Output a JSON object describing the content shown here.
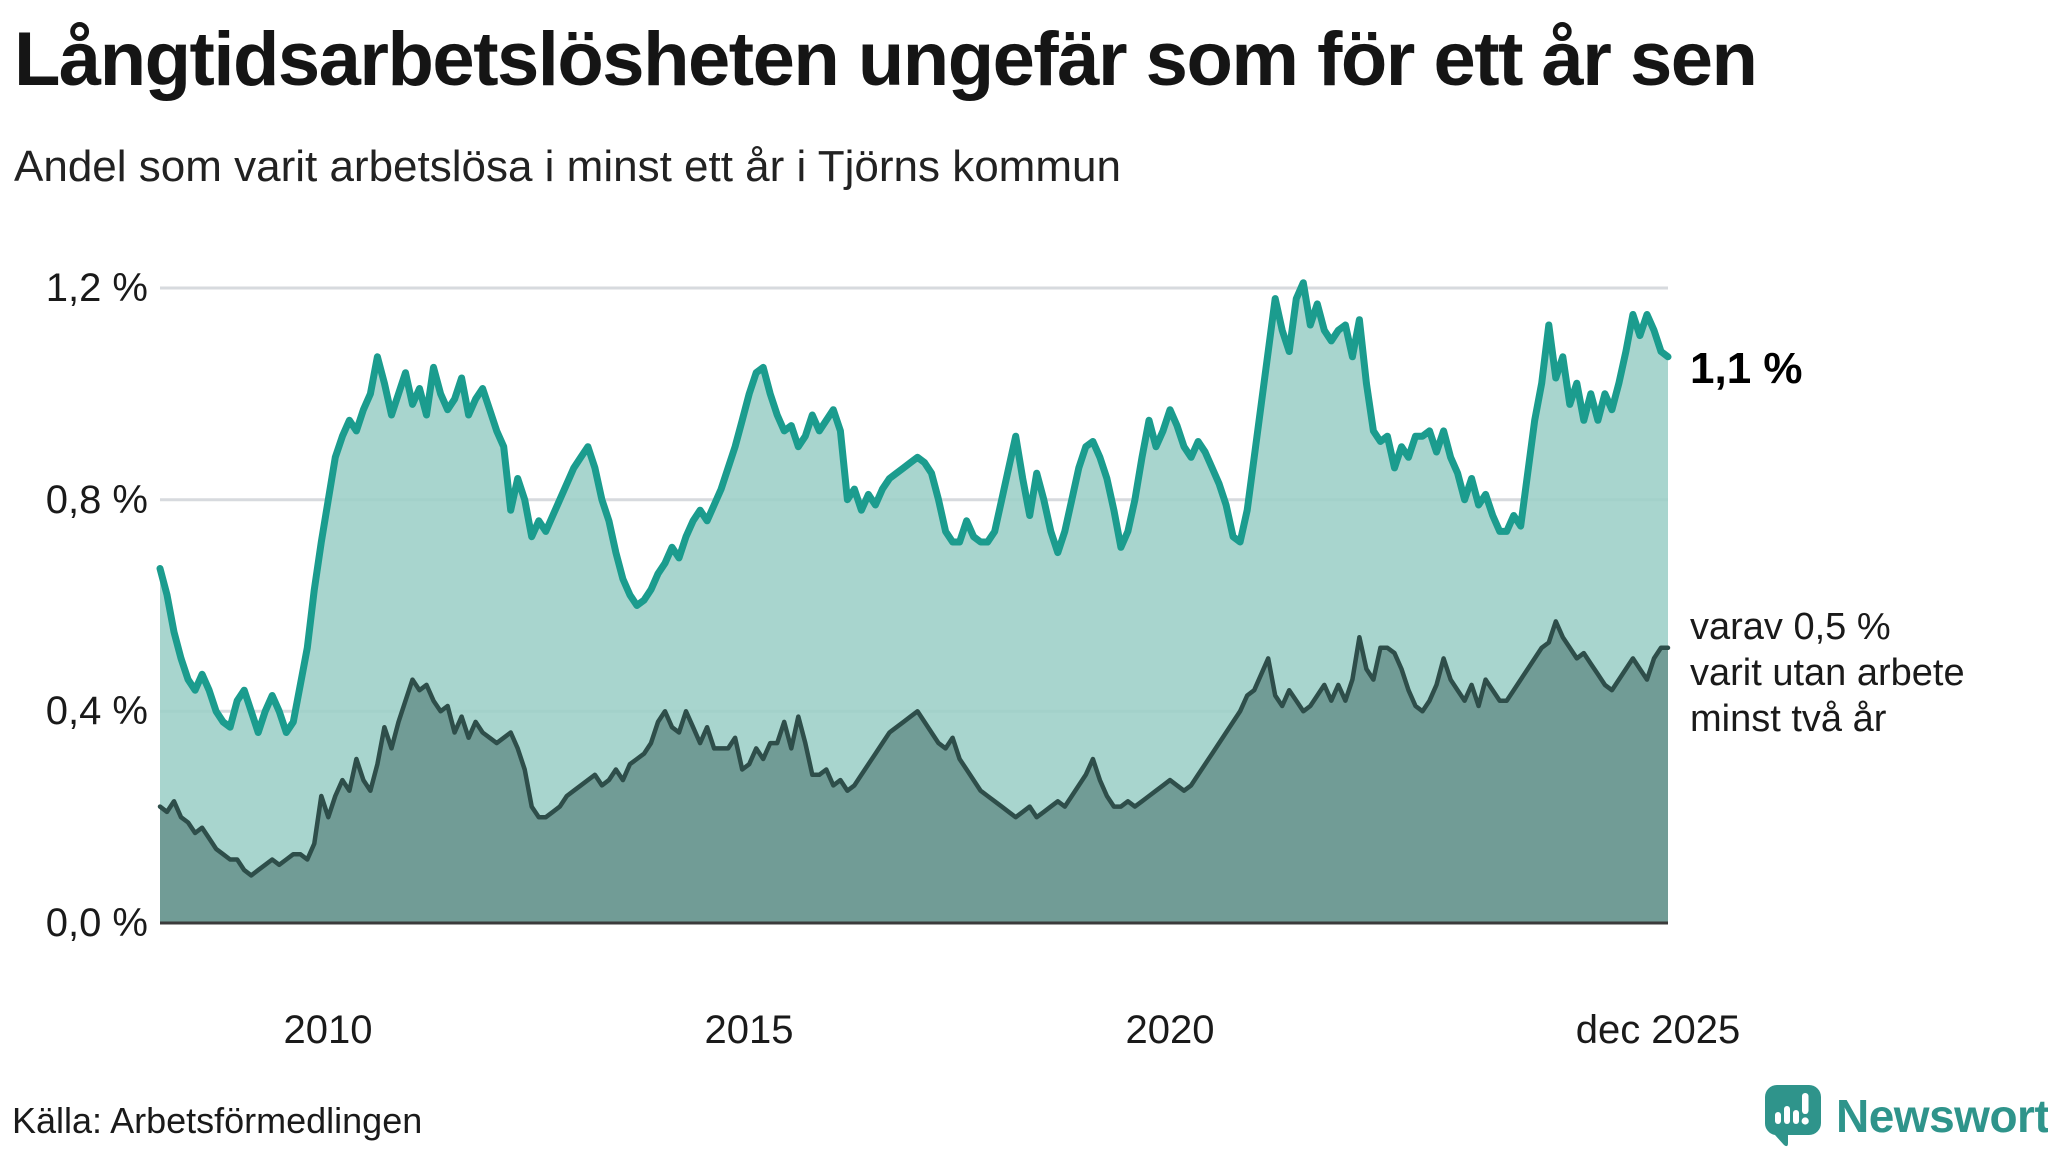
{
  "header": {
    "title": "Långtidsarbetslösheten ungefär som för ett år sen",
    "subtitle": "Andel som varit arbetslösa i minst ett år i Tjörns kommun"
  },
  "y_axis": {
    "ticks": [
      {
        "value": 1.2,
        "label": "1,2 %"
      },
      {
        "value": 0.8,
        "label": "0,8 %"
      },
      {
        "value": 0.4,
        "label": "0,4 %"
      },
      {
        "value": 0.0,
        "label": "0,0 %"
      }
    ]
  },
  "x_axis": {
    "ticks": [
      {
        "x": 2010.0,
        "label": "2010"
      },
      {
        "x": 2015.0,
        "label": "2015"
      },
      {
        "x": 2020.0,
        "label": "2020"
      },
      {
        "x": 2025.92,
        "label": "dec 2025"
      }
    ]
  },
  "annotations": {
    "latest_total": "1,1 %",
    "two_years_line1": "varav 0,5 %",
    "two_years_line2": "varit utan arbete",
    "two_years_line3": "minst två år"
  },
  "footer": {
    "source": "Källa: Arbetsförmedlingen",
    "brand": "Newsworthy"
  },
  "colors": {
    "line_total": "#1b9c8e",
    "fill_total": "#9ccfc7",
    "line_two_years": "#2e4e4a",
    "fill_two_years": "#6f9a94",
    "gridline": "#d7dade",
    "zero_axis": "#3b3b3b",
    "brand_teal": "#2f948b"
  },
  "chart_data": {
    "type": "area",
    "title": "Långtidsarbetslösheten ungefär som för ett år sen",
    "subtitle": "Andel som varit arbetslösa i minst ett år i Tjörns kommun",
    "unit": "%",
    "frequency": "monthly",
    "x_range": [
      2008.0,
      2025.92
    ],
    "ylim": [
      0,
      1.25
    ],
    "grid": "horizontal",
    "legend_position": "right-annotations",
    "series": [
      {
        "name": "Andel som varit arbetslösa i minst ett år",
        "latest_label": "1,1 %",
        "values": [
          0.67,
          0.62,
          0.55,
          0.5,
          0.46,
          0.44,
          0.47,
          0.44,
          0.4,
          0.38,
          0.37,
          0.42,
          0.44,
          0.4,
          0.36,
          0.4,
          0.43,
          0.4,
          0.36,
          0.38,
          0.45,
          0.52,
          0.63,
          0.72,
          0.8,
          0.88,
          0.92,
          0.95,
          0.93,
          0.97,
          1.0,
          1.07,
          1.02,
          0.96,
          1.0,
          1.04,
          0.98,
          1.01,
          0.96,
          1.05,
          1.0,
          0.97,
          0.99,
          1.03,
          0.96,
          0.99,
          1.01,
          0.97,
          0.93,
          0.9,
          0.78,
          0.84,
          0.8,
          0.73,
          0.76,
          0.74,
          0.77,
          0.8,
          0.83,
          0.86,
          0.88,
          0.9,
          0.86,
          0.8,
          0.76,
          0.7,
          0.65,
          0.62,
          0.6,
          0.61,
          0.63,
          0.66,
          0.68,
          0.71,
          0.69,
          0.73,
          0.76,
          0.78,
          0.76,
          0.79,
          0.82,
          0.86,
          0.9,
          0.95,
          1.0,
          1.04,
          1.05,
          1.0,
          0.96,
          0.93,
          0.94,
          0.9,
          0.92,
          0.96,
          0.93,
          0.95,
          0.97,
          0.93,
          0.8,
          0.82,
          0.78,
          0.81,
          0.79,
          0.82,
          0.84,
          0.85,
          0.86,
          0.87,
          0.88,
          0.87,
          0.85,
          0.8,
          0.74,
          0.72,
          0.72,
          0.76,
          0.73,
          0.72,
          0.72,
          0.74,
          0.8,
          0.86,
          0.92,
          0.84,
          0.77,
          0.85,
          0.8,
          0.74,
          0.7,
          0.74,
          0.8,
          0.86,
          0.9,
          0.91,
          0.88,
          0.84,
          0.78,
          0.71,
          0.74,
          0.8,
          0.88,
          0.95,
          0.9,
          0.93,
          0.97,
          0.94,
          0.9,
          0.88,
          0.91,
          0.89,
          0.86,
          0.83,
          0.79,
          0.73,
          0.72,
          0.78,
          0.88,
          0.98,
          1.08,
          1.18,
          1.12,
          1.08,
          1.18,
          1.21,
          1.13,
          1.17,
          1.12,
          1.1,
          1.12,
          1.13,
          1.07,
          1.14,
          1.02,
          0.93,
          0.91,
          0.92,
          0.86,
          0.9,
          0.88,
          0.92,
          0.92,
          0.93,
          0.89,
          0.93,
          0.88,
          0.85,
          0.8,
          0.84,
          0.79,
          0.81,
          0.77,
          0.74,
          0.74,
          0.77,
          0.75,
          0.85,
          0.95,
          1.02,
          1.13,
          1.03,
          1.07,
          0.98,
          1.02,
          0.95,
          1.0,
          0.95,
          1.0,
          0.97,
          1.02,
          1.08,
          1.15,
          1.11,
          1.15,
          1.12,
          1.08,
          1.07
        ]
      },
      {
        "name": "varav varit utan arbete minst två år",
        "latest_label": "0,5 %",
        "values": [
          0.22,
          0.21,
          0.23,
          0.2,
          0.19,
          0.17,
          0.18,
          0.16,
          0.14,
          0.13,
          0.12,
          0.12,
          0.1,
          0.09,
          0.1,
          0.11,
          0.12,
          0.11,
          0.12,
          0.13,
          0.13,
          0.12,
          0.15,
          0.24,
          0.2,
          0.24,
          0.27,
          0.25,
          0.31,
          0.27,
          0.25,
          0.3,
          0.37,
          0.33,
          0.38,
          0.42,
          0.46,
          0.44,
          0.45,
          0.42,
          0.4,
          0.41,
          0.36,
          0.39,
          0.35,
          0.38,
          0.36,
          0.35,
          0.34,
          0.35,
          0.36,
          0.33,
          0.29,
          0.22,
          0.2,
          0.2,
          0.21,
          0.22,
          0.24,
          0.25,
          0.26,
          0.27,
          0.28,
          0.26,
          0.27,
          0.29,
          0.27,
          0.3,
          0.31,
          0.32,
          0.34,
          0.38,
          0.4,
          0.37,
          0.36,
          0.4,
          0.37,
          0.34,
          0.37,
          0.33,
          0.33,
          0.33,
          0.35,
          0.29,
          0.3,
          0.33,
          0.31,
          0.34,
          0.34,
          0.38,
          0.33,
          0.39,
          0.34,
          0.28,
          0.28,
          0.29,
          0.26,
          0.27,
          0.25,
          0.26,
          0.28,
          0.3,
          0.32,
          0.34,
          0.36,
          0.37,
          0.38,
          0.39,
          0.4,
          0.38,
          0.36,
          0.34,
          0.33,
          0.35,
          0.31,
          0.29,
          0.27,
          0.25,
          0.24,
          0.23,
          0.22,
          0.21,
          0.2,
          0.21,
          0.22,
          0.2,
          0.21,
          0.22,
          0.23,
          0.22,
          0.24,
          0.26,
          0.28,
          0.31,
          0.27,
          0.24,
          0.22,
          0.22,
          0.23,
          0.22,
          0.23,
          0.24,
          0.25,
          0.26,
          0.27,
          0.26,
          0.25,
          0.26,
          0.28,
          0.3,
          0.32,
          0.34,
          0.36,
          0.38,
          0.4,
          0.43,
          0.44,
          0.47,
          0.5,
          0.43,
          0.41,
          0.44,
          0.42,
          0.4,
          0.41,
          0.43,
          0.45,
          0.42,
          0.45,
          0.42,
          0.46,
          0.54,
          0.48,
          0.46,
          0.52,
          0.52,
          0.51,
          0.48,
          0.44,
          0.41,
          0.4,
          0.42,
          0.45,
          0.5,
          0.46,
          0.44,
          0.42,
          0.45,
          0.41,
          0.46,
          0.44,
          0.42,
          0.42,
          0.44,
          0.46,
          0.48,
          0.5,
          0.52,
          0.53,
          0.57,
          0.54,
          0.52,
          0.5,
          0.51,
          0.49,
          0.47,
          0.45,
          0.44,
          0.46,
          0.48,
          0.5,
          0.48,
          0.46,
          0.5,
          0.52,
          0.52
        ]
      }
    ]
  }
}
